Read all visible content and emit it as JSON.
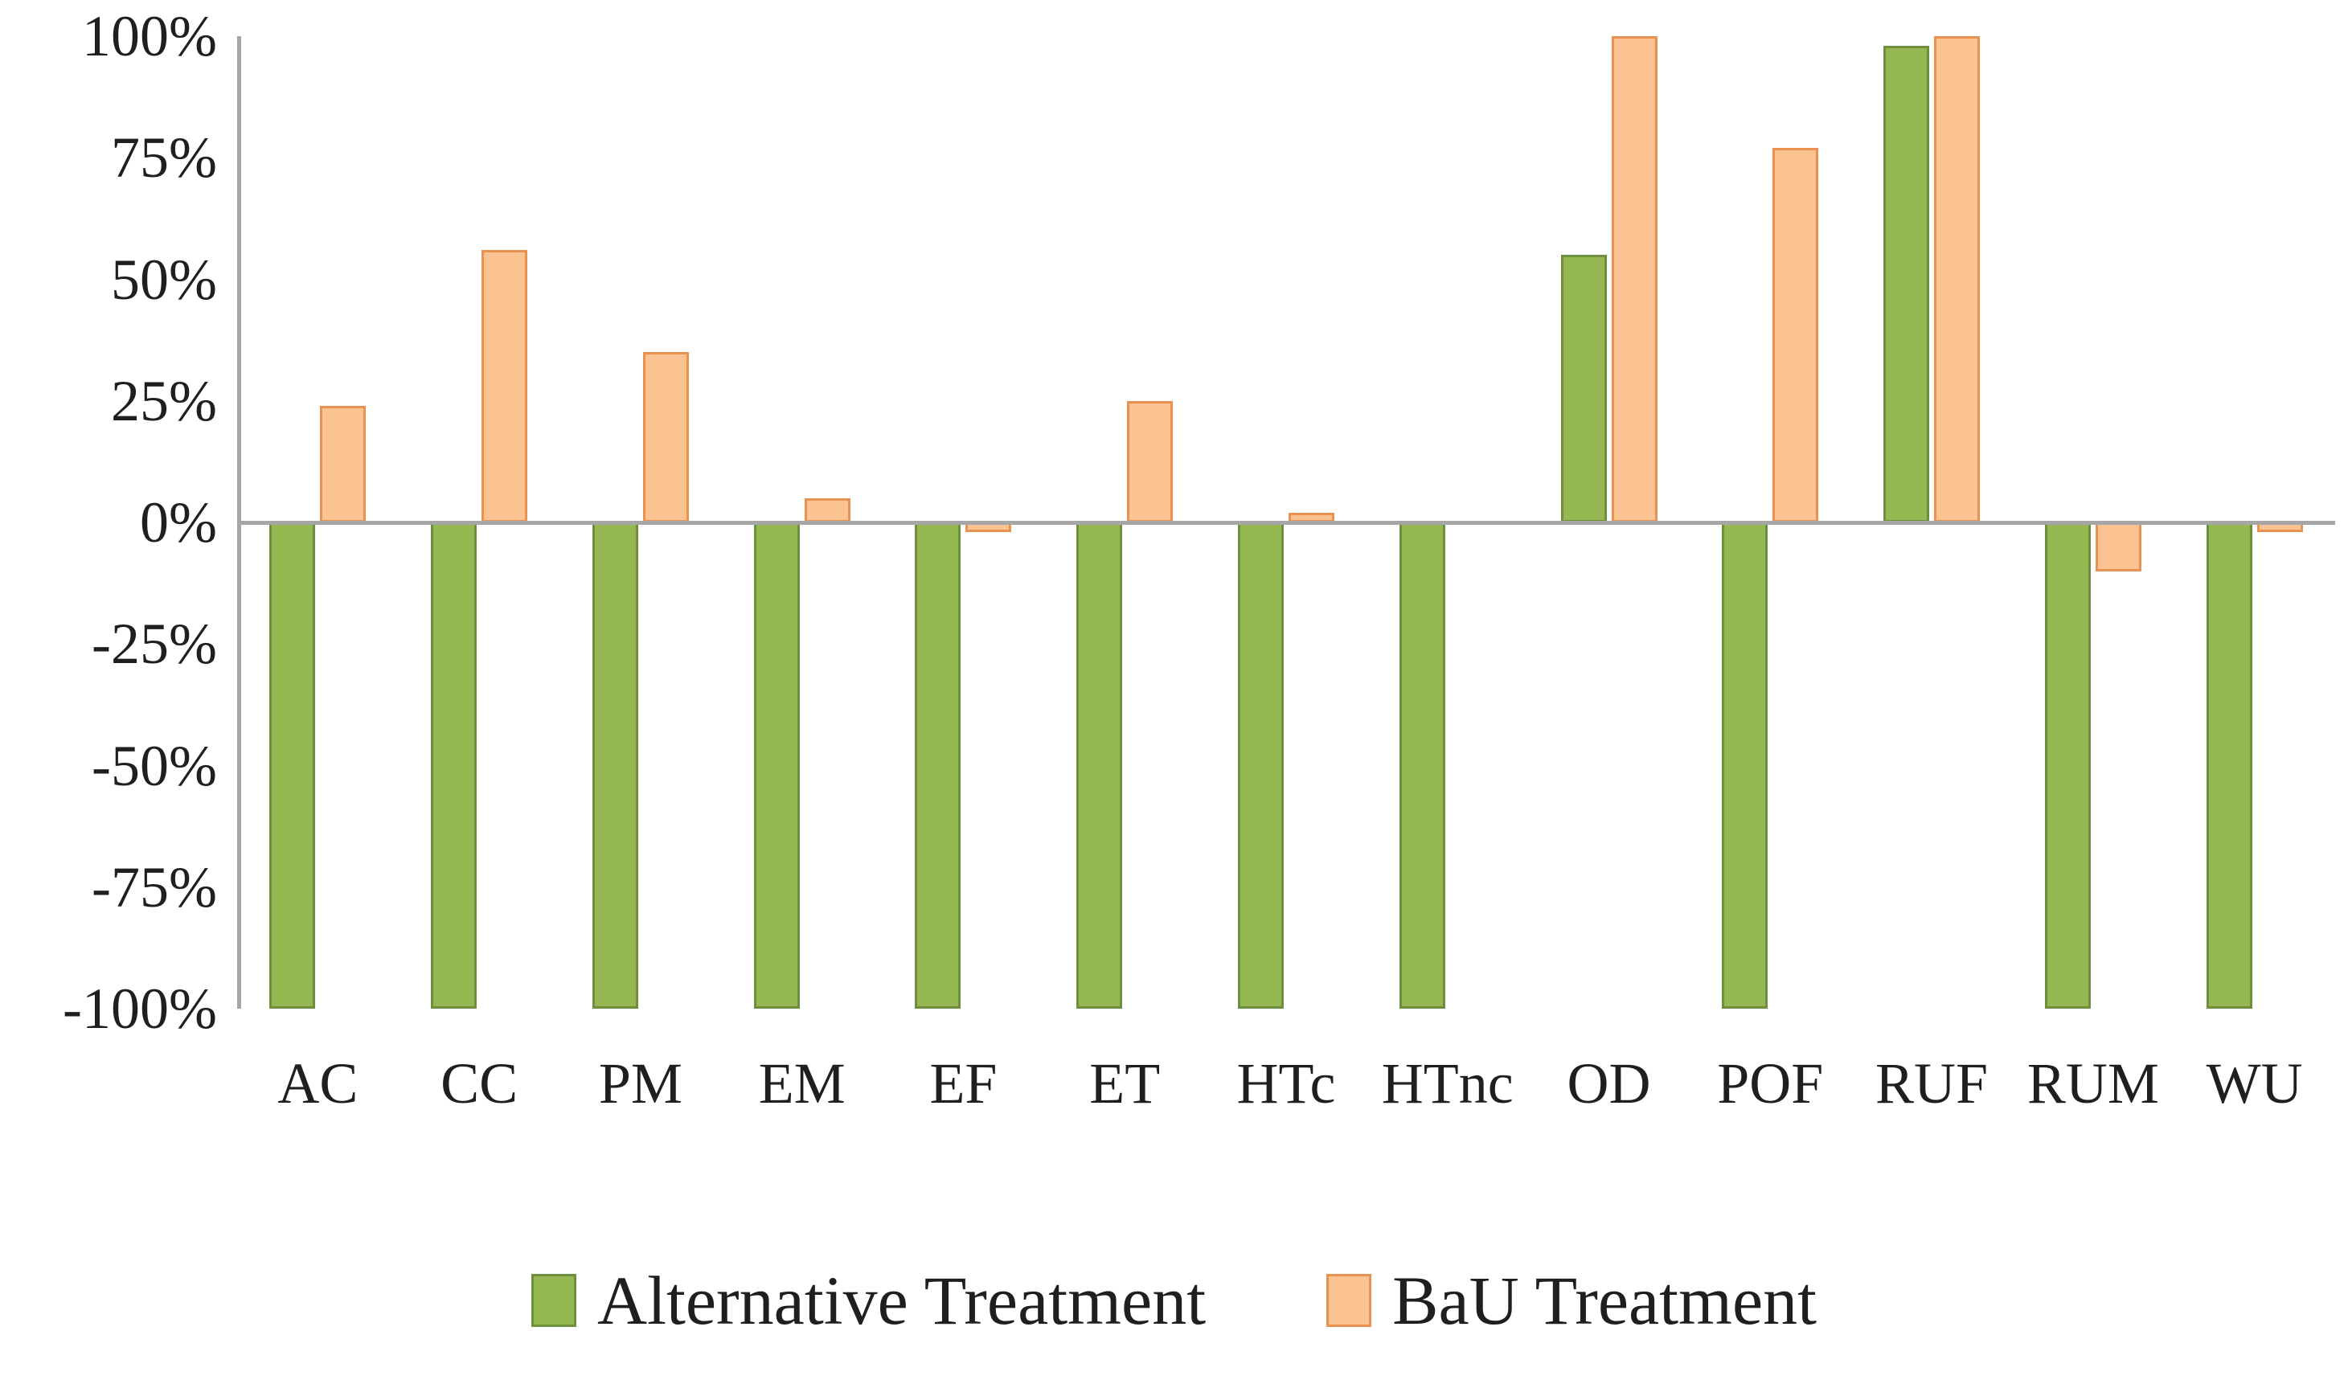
{
  "chart_data": {
    "type": "bar",
    "title": "",
    "xlabel": "",
    "ylabel": "",
    "categories": [
      "AC",
      "CC",
      "PM",
      "EM",
      "EF",
      "ET",
      "HTc",
      "HTnc",
      "OD",
      "POF",
      "RUF",
      "RUM",
      "WU"
    ],
    "series": [
      {
        "name": "Alternative Treatment",
        "color": "#95B853",
        "border_color": "#6E8F3D",
        "values": [
          -100,
          -100,
          -100,
          -100,
          -100,
          -100,
          -100,
          -100,
          55,
          -100,
          98,
          -100,
          -100
        ]
      },
      {
        "name": "BaU Treatment",
        "color": "#FBC392",
        "border_color": "#E89150",
        "values": [
          24,
          56,
          35,
          5,
          -2,
          25,
          2,
          0,
          100,
          77,
          100,
          -10,
          -2
        ]
      }
    ],
    "ylim": [
      -100,
      100
    ],
    "ytick_step": 25,
    "ytick_labels": [
      "100%",
      "75%",
      "50%",
      "25%",
      "0%",
      "-25%",
      "-50%",
      "-75%",
      "-100%"
    ],
    "ytick_values": [
      100,
      75,
      50,
      25,
      0,
      -25,
      -50,
      -75,
      -100
    ],
    "grid": false,
    "legend_position": "bottom",
    "axis_color": "#A6A6A6",
    "text_color": "#1f1f1f",
    "background_color": "#ffffff"
  }
}
